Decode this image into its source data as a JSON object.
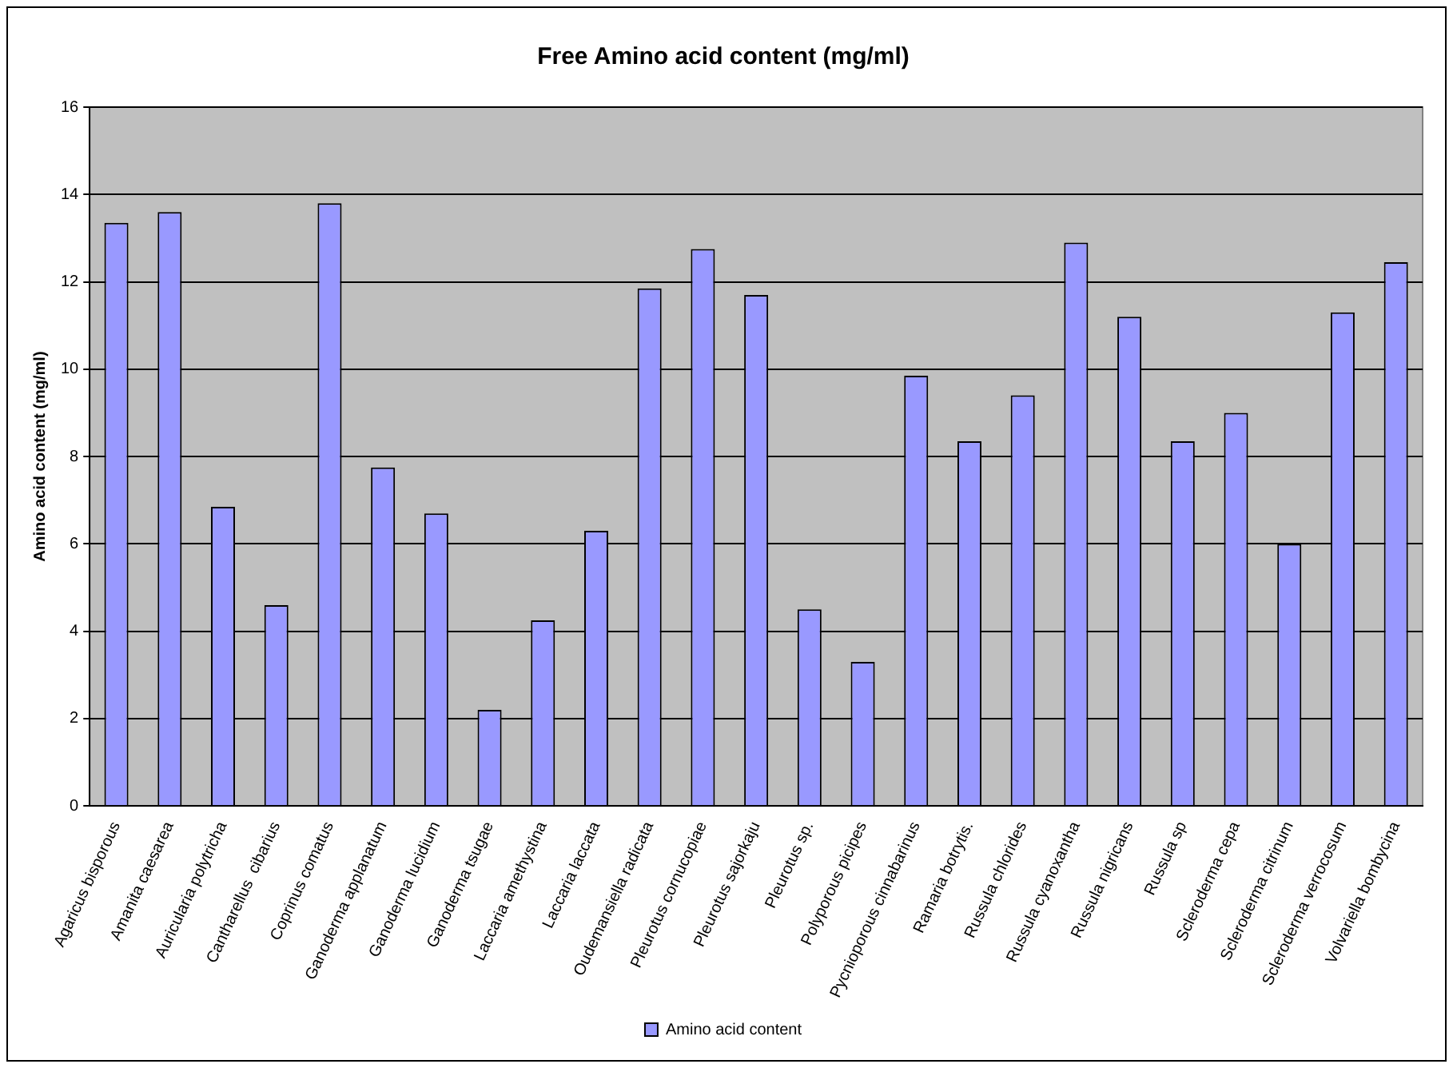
{
  "chart_data": {
    "type": "bar",
    "title": "Free Amino acid content (mg/ml)",
    "ylabel": "Amino acid content (mg/ml)",
    "categories": [
      "Agaricus bisporous",
      "Amanita caesarea",
      "Auricularia polytricha",
      "Cantharellus  cibarius",
      "Coprinus comatus",
      "Ganoderma applanatum",
      "Ganoderma lucidium",
      "Ganoderma tsugae",
      "Laccaria amethystina",
      "Laccaria laccata",
      "Oudemansiella radicata",
      "Pleurotus cornucopiae",
      "Pleurotus sajorkaju",
      "Pleurotus sp.",
      "Polyporous picipes",
      "Pycnioporous cinnabarinus",
      "Ramaria botrytis.",
      "Russula chlorides",
      "Russula cyanoxantha",
      "Russula nigricans",
      "Russula sp",
      "Scleroderma cepa",
      "Scleroderma citrinum",
      "Scleroderma verrocosum",
      "Volvariella bombycina"
    ],
    "series": [
      {
        "name": "Amino acid content",
        "color": "#9999ff",
        "values": [
          13.35,
          13.6,
          6.85,
          4.6,
          13.8,
          7.75,
          6.7,
          2.2,
          4.25,
          6.3,
          11.85,
          12.75,
          11.7,
          4.5,
          3.3,
          9.85,
          8.35,
          9.4,
          12.9,
          11.2,
          8.35,
          9.0,
          6.0,
          11.3,
          12.45
        ]
      }
    ],
    "ylim": [
      0,
      16
    ],
    "yticks": [
      0,
      2,
      4,
      6,
      8,
      10,
      12,
      14,
      16
    ],
    "grid": "y",
    "legend": "bottom"
  }
}
